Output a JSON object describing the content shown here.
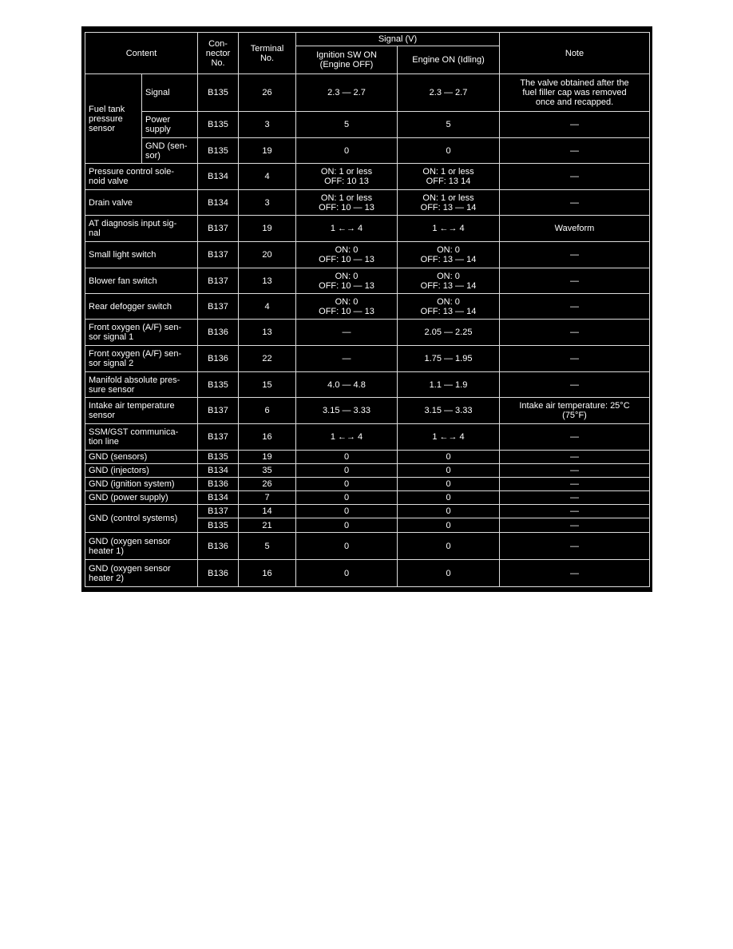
{
  "header": {
    "content": "Content",
    "connector": "Con-\nnector\nNo.",
    "terminal": "Terminal\nNo.",
    "signal": "Signal (V)",
    "ignition": "Ignition SW ON\n(Engine OFF)",
    "engine": "Engine ON (Idling)",
    "note": "Note"
  },
  "rows": [
    {
      "group": "Fuel tank\npressure\nsensor",
      "sub": "Signal",
      "connector": "B135",
      "terminal": "26",
      "ign": "2.3 — 2.7",
      "eng": "2.3 — 2.7",
      "note": "The valve obtained after the\nfuel filler cap was removed\nonce and recapped."
    },
    {
      "group": "Fuel tank\npressure\nsensor",
      "sub": "Power\nsupply",
      "connector": "B135",
      "terminal": "3",
      "ign": "5",
      "eng": "5",
      "note": "—"
    },
    {
      "group": "Fuel tank\npressure\nsensor",
      "sub": "GND (sen-\nsor)",
      "connector": "B135",
      "terminal": "19",
      "ign": "0",
      "eng": "0",
      "note": "—"
    },
    {
      "content": "Pressure control sole-\nnoid valve",
      "connector": "B134",
      "terminal": "4",
      "ign": "ON: 1 or less\nOFF: 10     13",
      "eng": "ON: 1 or less\nOFF: 13     14",
      "note": "—"
    },
    {
      "content": "Drain valve",
      "connector": "B134",
      "terminal": "3",
      "ign": "ON: 1 or less\nOFF: 10 — 13",
      "eng": "ON: 1 or less\nOFF: 13 — 14",
      "note": "—"
    },
    {
      "content": "AT diagnosis input sig-\nnal",
      "connector": "B137",
      "terminal": "19",
      "ign": "1 ←→ 4",
      "eng": "1 ←→ 4",
      "note": "Waveform"
    },
    {
      "content": "Small light switch",
      "connector": "B137",
      "terminal": "20",
      "ign": "ON: 0\nOFF: 10 — 13",
      "eng": "ON: 0\nOFF: 13 — 14",
      "note": "—"
    },
    {
      "content": "Blower fan switch",
      "connector": "B137",
      "terminal": "13",
      "ign": "ON: 0\nOFF: 10 — 13",
      "eng": "ON: 0\nOFF: 13 — 14",
      "note": "—"
    },
    {
      "content": "Rear defogger switch",
      "connector": "B137",
      "terminal": "4",
      "ign": "ON: 0\nOFF: 10 — 13",
      "eng": "ON: 0\nOFF: 13 — 14",
      "note": "—"
    },
    {
      "content": "Front oxygen (A/F) sen-\nsor signal 1",
      "connector": "B136",
      "terminal": "13",
      "ign": "—",
      "eng": "2.05 — 2.25",
      "note": "—"
    },
    {
      "content": "Front oxygen (A/F) sen-\nsor signal 2",
      "connector": "B136",
      "terminal": "22",
      "ign": "—",
      "eng": "1.75 — 1.95",
      "note": "—"
    },
    {
      "content": "Manifold absolute pres-\nsure sensor",
      "connector": "B135",
      "terminal": "15",
      "ign": "4.0 — 4.8",
      "eng": "1.1 — 1.9",
      "note": "—"
    },
    {
      "content": "Intake air temperature\nsensor",
      "connector": "B137",
      "terminal": "6",
      "ign": "3.15 — 3.33",
      "eng": "3.15 — 3.33",
      "note": "Intake air temperature: 25°C\n(75°F)"
    },
    {
      "content": "SSM/GST communica-\ntion line",
      "connector": "B137",
      "terminal": "16",
      "ign": "1 ←→ 4",
      "eng": "1 ←→ 4",
      "note": "—"
    },
    {
      "content": "GND (sensors)",
      "connector": "B135",
      "terminal": "19",
      "ign": "0",
      "eng": "0",
      "note": "—"
    },
    {
      "content": "GND (injectors)",
      "connector": "B134",
      "terminal": "35",
      "ign": "0",
      "eng": "0",
      "note": "—"
    },
    {
      "content": "GND (ignition system)",
      "connector": "B136",
      "terminal": "26",
      "ign": "0",
      "eng": "0",
      "note": "—"
    },
    {
      "content": "GND (power supply)",
      "connector": "B134",
      "terminal": "7",
      "ign": "0",
      "eng": "0",
      "note": "—"
    },
    {
      "content": "GND (control systems)",
      "connector": "B137",
      "terminal": "14",
      "ign": "0",
      "eng": "0",
      "note": "—"
    },
    {
      "content": "GND (control systems)",
      "connector": "B135",
      "terminal": "21",
      "ign": "0",
      "eng": "0",
      "note": "—"
    },
    {
      "content": "GND (oxygen sensor\nheater 1)",
      "connector": "B136",
      "terminal": "5",
      "ign": "0",
      "eng": "0",
      "note": "—"
    },
    {
      "content": "GND (oxygen sensor\nheater 2)",
      "connector": "B136",
      "terminal": "16",
      "ign": "0",
      "eng": "0",
      "note": "—"
    }
  ]
}
